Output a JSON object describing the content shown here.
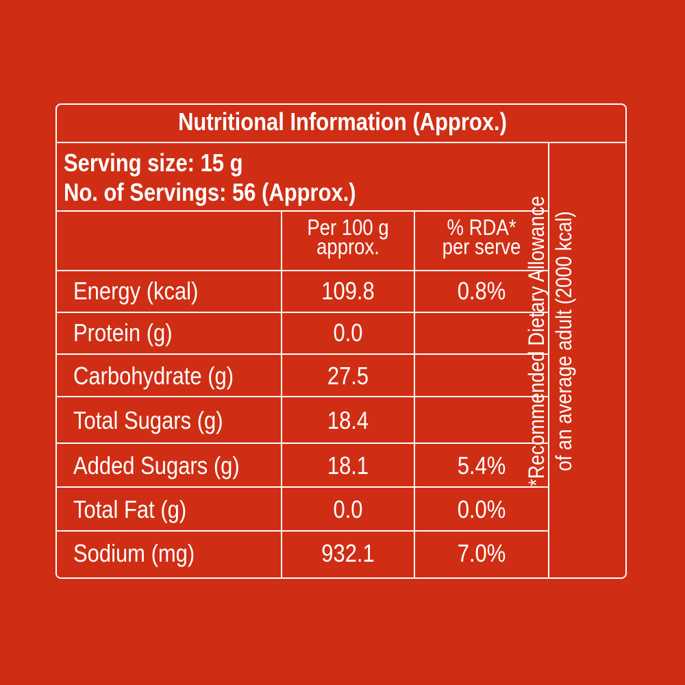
{
  "panel": {
    "title": "Nutritional Information (Approx.)",
    "serving_size": "Serving size: 15 g",
    "servings": "No. of Servings: 56 (Approx.)",
    "columns": {
      "per100_line1": "Per 100 g",
      "per100_line2": "approx.",
      "rda_line1": "% RDA*",
      "rda_line2": "per serve"
    },
    "rows": [
      {
        "label": "Energy (kcal)",
        "per100": "109.8",
        "rda": "0.8%"
      },
      {
        "label": "Protein (g)",
        "per100": "0.0",
        "rda": ""
      },
      {
        "label": "Carbohydrate (g)",
        "per100": "27.5",
        "rda": ""
      },
      {
        "label": "Total Sugars (g)",
        "per100": "18.4",
        "rda": ""
      },
      {
        "label": "Added Sugars (g)",
        "per100": "18.1",
        "rda": "5.4%"
      },
      {
        "label": "Total Fat (g)",
        "per100": "0.0",
        "rda": "0.0%"
      },
      {
        "label": "Sodium (mg)",
        "per100": "932.1",
        "rda": "7.0%"
      }
    ],
    "footnote_line1": "*Recommended Dietary Allowance",
    "footnote_line2": "of an average adult (2000 kcal)"
  },
  "colors": {
    "background": "#cf2e15",
    "text_and_rules": "#ffffff"
  }
}
